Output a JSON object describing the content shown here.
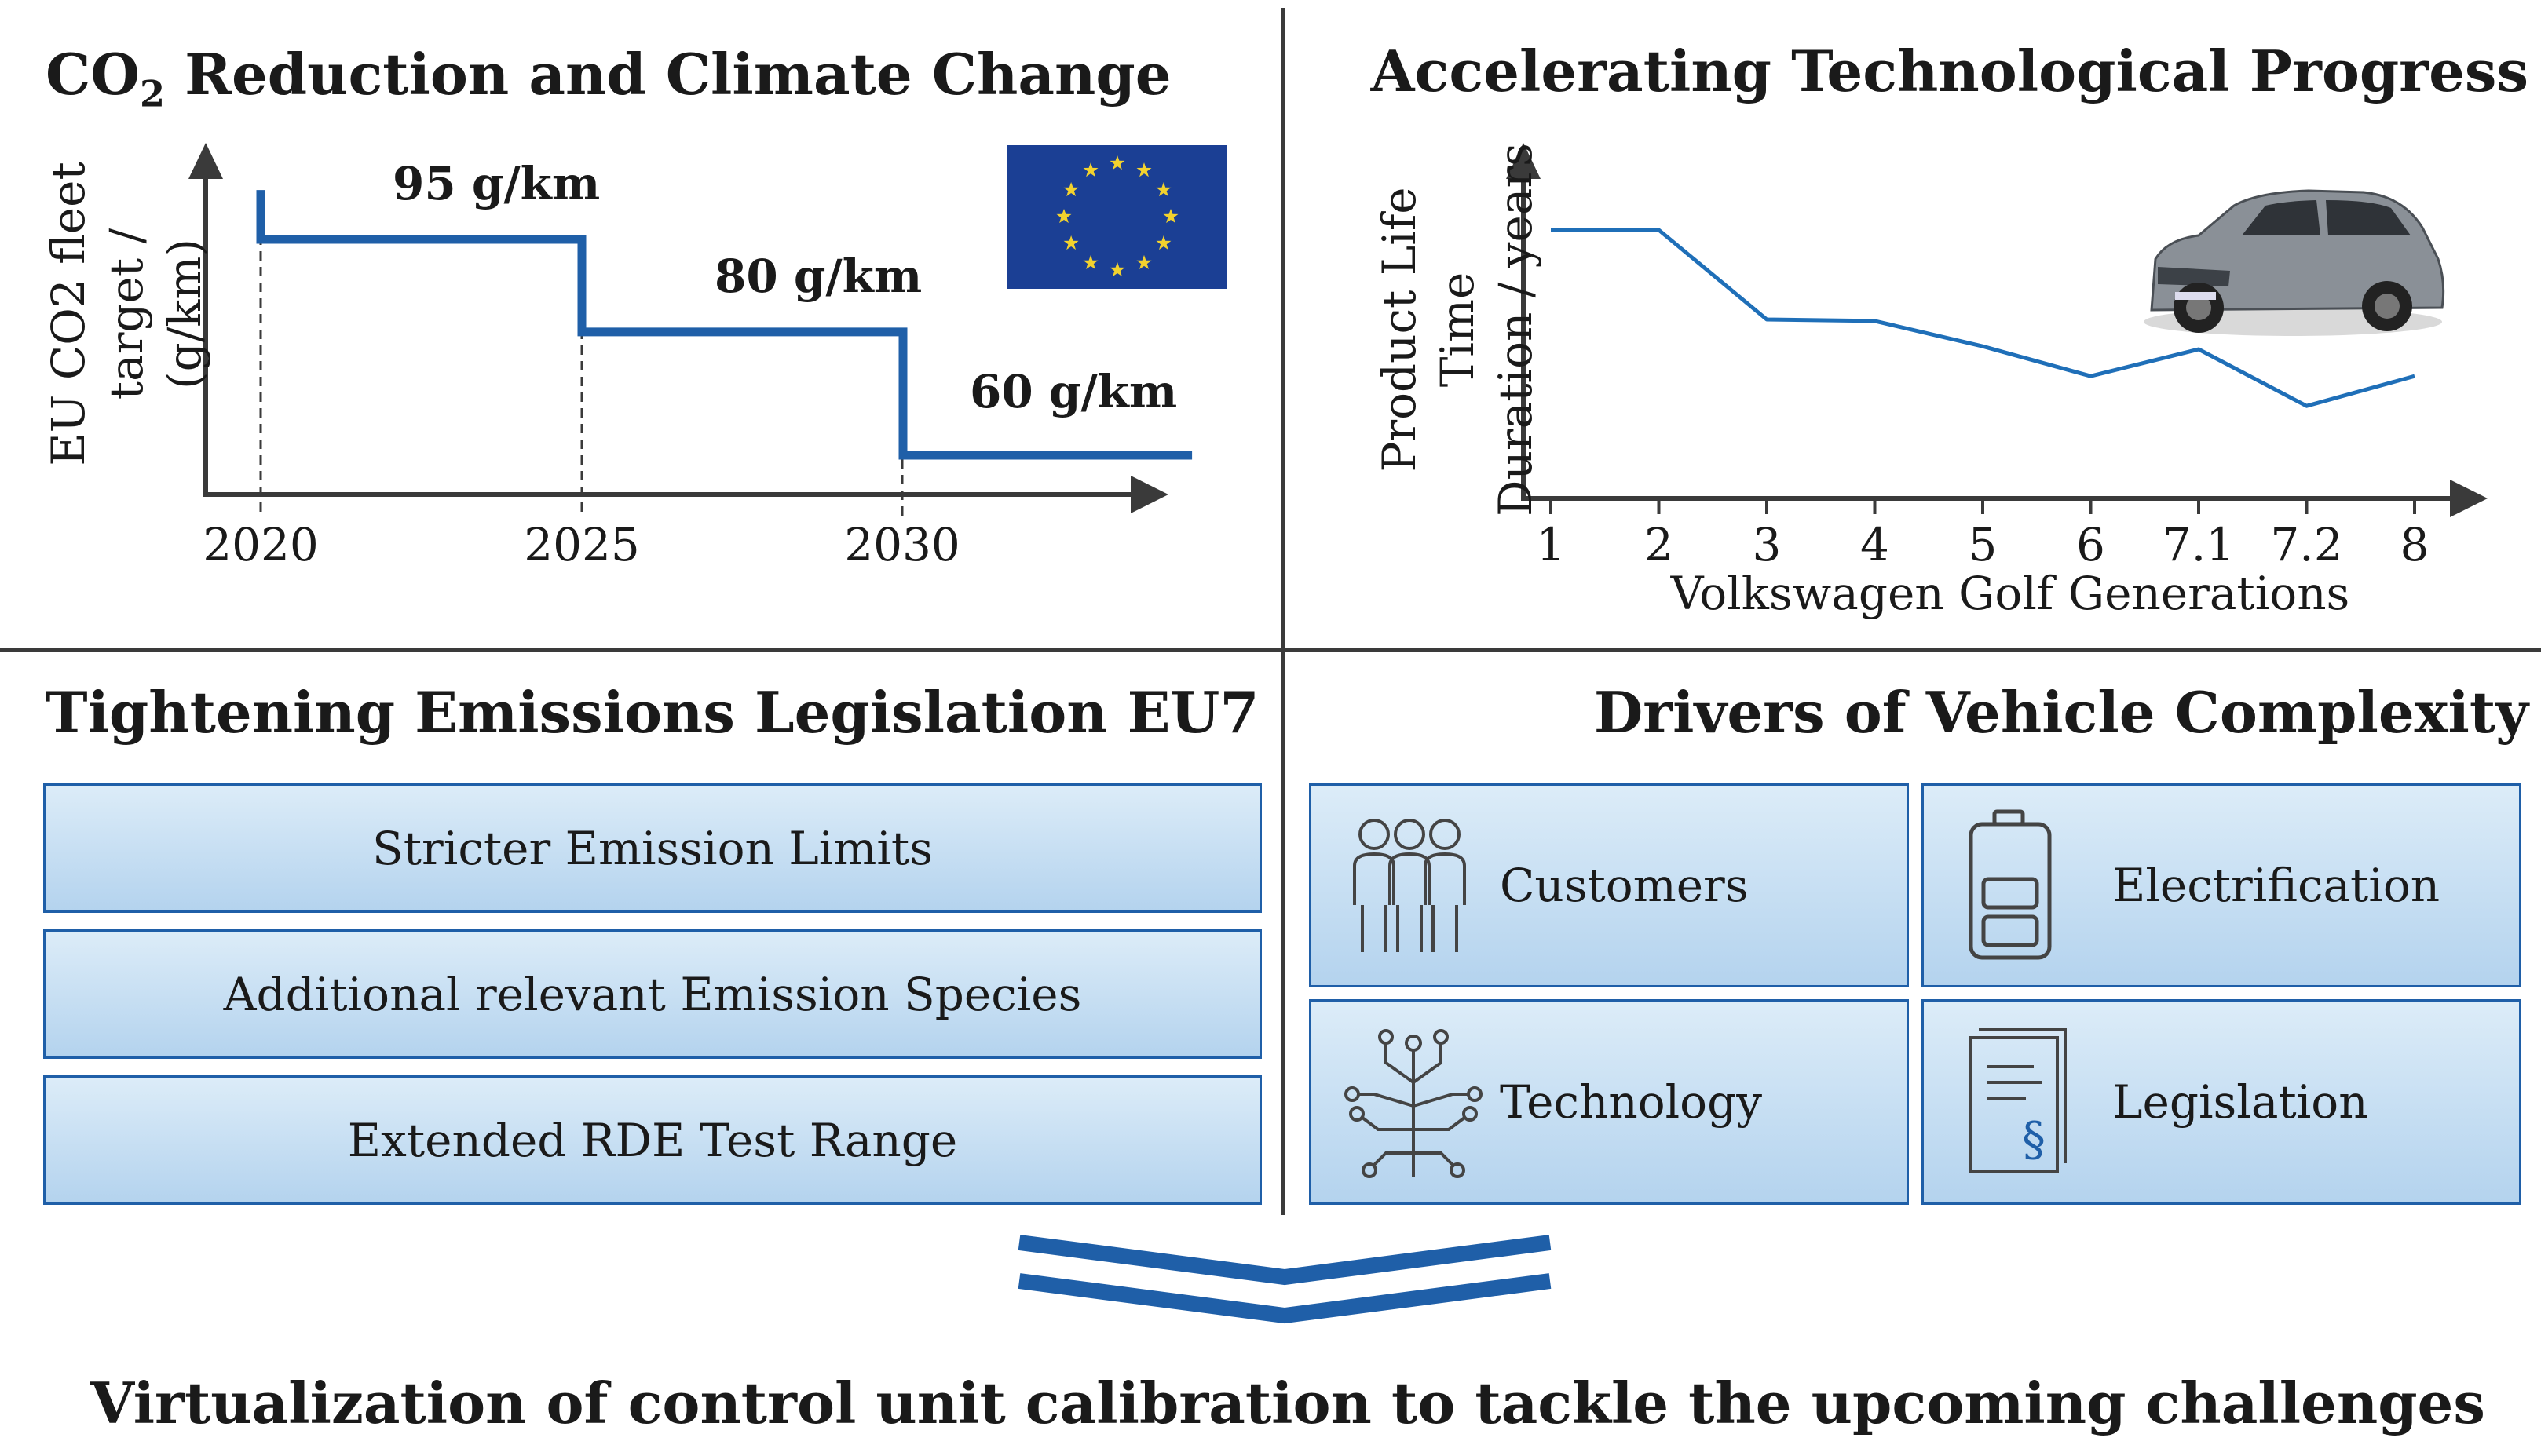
{
  "panel_co2": {
    "title": "CO",
    "title_sub": "2",
    "title_rest": " Reduction and Climate Change",
    "ylabel_line1": "EU CO2 fleet",
    "ylabel_line2": "target / (g/km)",
    "level_labels": [
      "95 g/km",
      "80 g/km",
      "60 g/km"
    ],
    "x_ticks": [
      "2020",
      "2025",
      "2030"
    ],
    "flag_colors": {
      "blue": "#1b3f94",
      "star": "#f2d22e"
    }
  },
  "panel_progress": {
    "title": "Accelerating Technological Progress",
    "ylabel_line1": "Product Life Time",
    "ylabel_line2": "Duration / years",
    "xlabel": "Volkswagen Golf Generations",
    "x_ticks": [
      "1",
      "2",
      "3",
      "4",
      "5",
      "6",
      "7.1",
      "7.2",
      "8"
    ]
  },
  "chart_data": [
    {
      "type": "line",
      "title": "CO2 Reduction and Climate Change",
      "xlabel": "",
      "ylabel": "EU CO2 fleet target / (g/km)",
      "x": [
        2020,
        2025,
        2025,
        2030,
        2030,
        2034.5
      ],
      "y": [
        95,
        95,
        80,
        80,
        60,
        60
      ],
      "x_ticks": [
        2020,
        2025,
        2030
      ],
      "step": true,
      "series_color": "#1f5fa8"
    },
    {
      "type": "line",
      "title": "Accelerating Technological Progress",
      "xlabel": "Volkswagen Golf Generations",
      "ylabel": "Product Life Time Duration / years",
      "categories": [
        "1",
        "2",
        "3",
        "4",
        "5",
        "6",
        "7.1",
        "7.2",
        "8"
      ],
      "values": [
        9,
        9,
        6,
        5.95,
        5.1,
        4.1,
        5,
        3.1,
        4.1
      ],
      "ylim": [
        0,
        10
      ],
      "series_color": "#1f6fb8"
    }
  ],
  "panel_emissions": {
    "title": "Tightening Emissions Legislation EU7",
    "items": [
      "Stricter Emission Limits",
      "Additional relevant Emission Species",
      "Extended RDE Test Range"
    ]
  },
  "panel_drivers": {
    "title": "Drivers of Vehicle Complexity",
    "items": [
      {
        "label": "Customers",
        "icon": "people-icon"
      },
      {
        "label": "Electrification",
        "icon": "battery-icon"
      },
      {
        "label": "Technology",
        "icon": "circuit-tree-icon"
      },
      {
        "label": "Legislation",
        "icon": "legal-document-icon"
      }
    ]
  },
  "conclusion": "Virtualization of control unit calibration to tackle the upcoming challenges",
  "colors": {
    "accent": "#1f5fa8",
    "box_top": "#dcecf8",
    "box_bottom": "#b4d3ee",
    "divider": "#3a3a3a"
  }
}
